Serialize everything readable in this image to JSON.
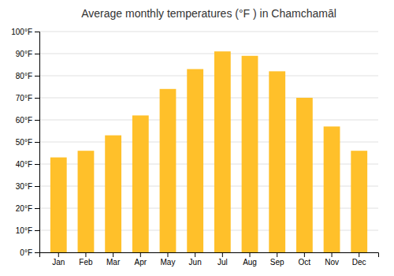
{
  "chart_data": {
    "type": "bar",
    "title": "Average monthly temperatures (°F ) in Chamchamāl",
    "categories": [
      "Jan",
      "Feb",
      "Mar",
      "Apr",
      "May",
      "Jun",
      "Jul",
      "Aug",
      "Sep",
      "Oct",
      "Nov",
      "Dec"
    ],
    "values": [
      43,
      46,
      53,
      62,
      74,
      83,
      91,
      89,
      82,
      70,
      57,
      46
    ],
    "color": "#FFC02A",
    "ylim": [
      0,
      100
    ],
    "yticks": [
      {
        "value": 0,
        "label": "0°F"
      },
      {
        "value": 10,
        "label": "10°F"
      },
      {
        "value": 20,
        "label": "20°F"
      },
      {
        "value": 30,
        "label": "30°F"
      },
      {
        "value": 40,
        "label": "40°F"
      },
      {
        "value": 50,
        "label": "50°F"
      },
      {
        "value": 60,
        "label": "60°F"
      },
      {
        "value": 70,
        "label": "70°F"
      },
      {
        "value": 80,
        "label": "80°F"
      },
      {
        "value": 90,
        "label": "90°F"
      },
      {
        "value": 100,
        "label": "100°F"
      }
    ],
    "grid": true
  }
}
